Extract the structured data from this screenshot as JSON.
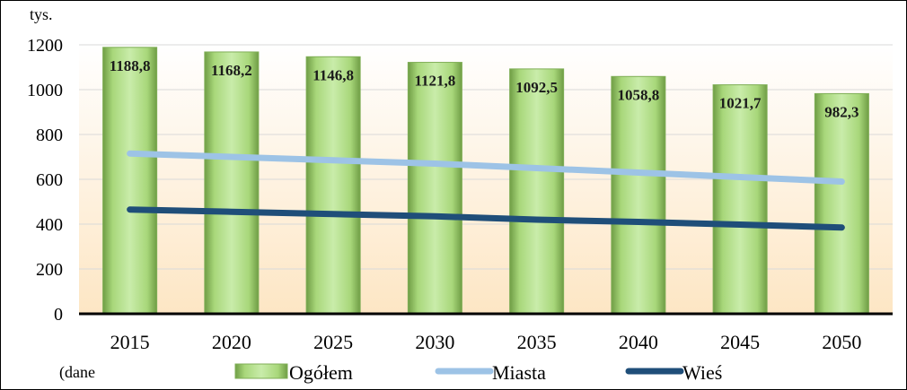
{
  "chart_data": {
    "type": "bar",
    "unit_label": "tys.",
    "categories": [
      "2015",
      "2020",
      "2025",
      "2030",
      "2035",
      "2040",
      "2045",
      "2050"
    ],
    "ylim": [
      0,
      1200
    ],
    "yticks": [
      0,
      200,
      400,
      600,
      800,
      1000,
      1200
    ],
    "grid": true,
    "legend_position": "bottom",
    "source_note": "(dane",
    "series": [
      {
        "name": "Ogółem",
        "kind": "bar",
        "color": "#a8d77a",
        "values": [
          1188.8,
          1168.2,
          1146.8,
          1121.8,
          1092.5,
          1058.8,
          1021.7,
          982.3
        ],
        "labels": [
          "1188,8",
          "1168,2",
          "1146,8",
          "1121,8",
          "1092,5",
          "1058,8",
          "1021,7",
          "982,3"
        ]
      },
      {
        "name": "Miasta",
        "kind": "line",
        "color": "#9dc3e6",
        "values": [
          715,
          700,
          685,
          670,
          650,
          630,
          610,
          590
        ]
      },
      {
        "name": "Wieś",
        "kind": "line",
        "color": "#1f4e79",
        "values": [
          465,
          455,
          445,
          435,
          420,
          410,
          398,
          385
        ]
      }
    ]
  }
}
